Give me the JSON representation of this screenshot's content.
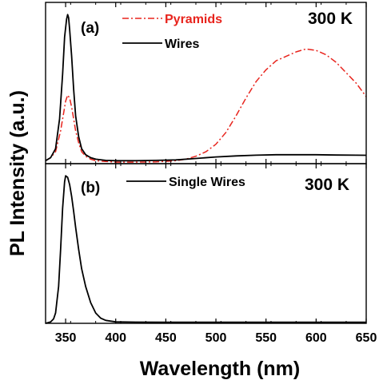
{
  "chart_data": [
    {
      "type": "line",
      "panel_label": "(a)",
      "temperature_label": "300 K",
      "xlabel": "",
      "ylabel": "",
      "xlim": [
        330,
        650
      ],
      "ylim": [
        0,
        1.05
      ],
      "legend_placement": "top-center",
      "series": [
        {
          "name": "Pyramids",
          "color": "#e8241d",
          "style": "dash-dot",
          "points": [
            [
              330,
              0.02
            ],
            [
              335,
              0.04
            ],
            [
              340,
              0.08
            ],
            [
              345,
              0.22
            ],
            [
              348,
              0.34
            ],
            [
              350,
              0.42
            ],
            [
              352,
              0.46
            ],
            [
              354,
              0.44
            ],
            [
              356,
              0.38
            ],
            [
              358,
              0.3
            ],
            [
              360,
              0.22
            ],
            [
              363,
              0.14
            ],
            [
              366,
              0.08
            ],
            [
              370,
              0.05
            ],
            [
              375,
              0.03
            ],
            [
              380,
              0.02
            ],
            [
              390,
              0.015
            ],
            [
              400,
              0.01
            ],
            [
              420,
              0.01
            ],
            [
              440,
              0.012
            ],
            [
              460,
              0.02
            ],
            [
              470,
              0.03
            ],
            [
              480,
              0.05
            ],
            [
              490,
              0.08
            ],
            [
              500,
              0.13
            ],
            [
              510,
              0.21
            ],
            [
              520,
              0.32
            ],
            [
              530,
              0.44
            ],
            [
              540,
              0.55
            ],
            [
              550,
              0.63
            ],
            [
              560,
              0.69
            ],
            [
              570,
              0.72
            ],
            [
              580,
              0.75
            ],
            [
              590,
              0.77
            ],
            [
              600,
              0.76
            ],
            [
              610,
              0.73
            ],
            [
              620,
              0.68
            ],
            [
              630,
              0.61
            ],
            [
              640,
              0.54
            ],
            [
              650,
              0.45
            ]
          ]
        },
        {
          "name": "Wires",
          "color": "#000000",
          "style": "solid",
          "points": [
            [
              330,
              0.02
            ],
            [
              335,
              0.04
            ],
            [
              340,
              0.1
            ],
            [
              344,
              0.3
            ],
            [
              347,
              0.6
            ],
            [
              349,
              0.85
            ],
            [
              351,
              0.97
            ],
            [
              352,
              1.0
            ],
            [
              353,
              0.98
            ],
            [
              354,
              0.9
            ],
            [
              356,
              0.72
            ],
            [
              358,
              0.5
            ],
            [
              360,
              0.32
            ],
            [
              363,
              0.18
            ],
            [
              366,
              0.1
            ],
            [
              370,
              0.06
            ],
            [
              375,
              0.04
            ],
            [
              380,
              0.03
            ],
            [
              390,
              0.022
            ],
            [
              400,
              0.02
            ],
            [
              420,
              0.02
            ],
            [
              440,
              0.022
            ],
            [
              460,
              0.025
            ],
            [
              480,
              0.035
            ],
            [
              500,
              0.045
            ],
            [
              520,
              0.052
            ],
            [
              540,
              0.057
            ],
            [
              560,
              0.06
            ],
            [
              580,
              0.06
            ],
            [
              600,
              0.06
            ],
            [
              620,
              0.058
            ],
            [
              640,
              0.057
            ],
            [
              650,
              0.056
            ]
          ]
        }
      ]
    },
    {
      "type": "line",
      "panel_label": "(b)",
      "temperature_label": "300 K",
      "xlabel": "Wavelength (nm)",
      "ylabel": "PL Intensity (a.u.)",
      "xlim": [
        330,
        650
      ],
      "ylim": [
        0,
        1.05
      ],
      "x_ticks": [
        350,
        400,
        450,
        500,
        550,
        600,
        650
      ],
      "legend_placement": "top-center",
      "series": [
        {
          "name": "Single Wires",
          "color": "#000000",
          "style": "solid",
          "points": [
            [
              330,
              0.0
            ],
            [
              335,
              0.01
            ],
            [
              338,
              0.03
            ],
            [
              340,
              0.07
            ],
            [
              343,
              0.25
            ],
            [
              345,
              0.5
            ],
            [
              347,
              0.78
            ],
            [
              349,
              0.96
            ],
            [
              350,
              1.0
            ],
            [
              352,
              0.99
            ],
            [
              354,
              0.94
            ],
            [
              356,
              0.86
            ],
            [
              358,
              0.76
            ],
            [
              360,
              0.65
            ],
            [
              363,
              0.5
            ],
            [
              366,
              0.37
            ],
            [
              370,
              0.25
            ],
            [
              375,
              0.14
            ],
            [
              380,
              0.07
            ],
            [
              385,
              0.035
            ],
            [
              390,
              0.02
            ],
            [
              400,
              0.01
            ],
            [
              420,
              0.008
            ],
            [
              450,
              0.007
            ],
            [
              500,
              0.007
            ],
            [
              550,
              0.007
            ],
            [
              600,
              0.007
            ],
            [
              650,
              0.007
            ]
          ]
        }
      ]
    }
  ]
}
